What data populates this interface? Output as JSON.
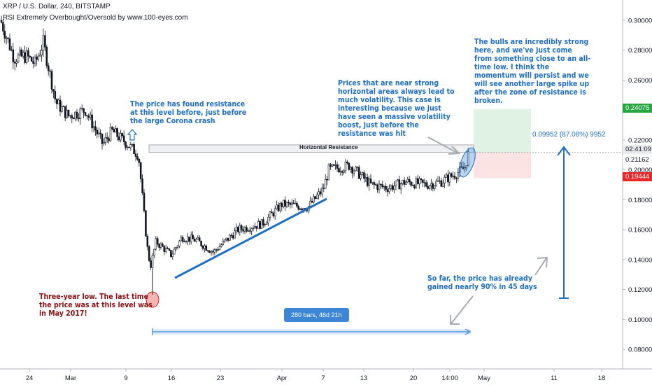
{
  "header": {
    "title": "XRP / U.S. Dollar, 240, BITSTAMP",
    "indicator": "RSI Extremely Overbought/Oversold by www.100-eyes.com"
  },
  "colors": {
    "up": "#ffffff",
    "down": "#131722",
    "accent_blue": "#1e6fc4",
    "dark_red": "#8b0f0f",
    "green_tag": "#26a641",
    "red_tag": "#e8272a",
    "grid": "#ffffff"
  },
  "axis": {
    "y_ticks": [
      "0.30000",
      "0.28000",
      "0.26000",
      "0.22000",
      "0.20000",
      "0.18000",
      "0.16000",
      "0.14000",
      "0.12000",
      "0.10000",
      "0.08000"
    ],
    "x_ticks": [
      "24",
      "Mar",
      "9",
      "16",
      "23",
      "Apr",
      "7",
      "13",
      "20",
      "14:00",
      "May",
      "11",
      "18"
    ],
    "price_tags": {
      "target": "0.24075",
      "countdown": "02:41:09",
      "last": "0.21162",
      "stop": "0.19444"
    }
  },
  "annotations": {
    "resistance": "The price has found resistance\nat this level before, just before\nthe large Corona crash",
    "volatility": "Prices that are near strong\nhorizontal areas always lead to\nmuch volatility. This case is\ninteresting because we just\nhave seen a massive volatility\nboost, just before the\nresistance was hit",
    "bulls": "The bulls are incredibly strong\nhere, and we've just come\nfrom something close to an all-\ntime low. I think the\nmomentum will persist and we\nwill see another large spike up\nafter the zone of resistance is\nbroken.",
    "low": "Three-year low. The last time\nthe price was at this level was\nin May 2017!",
    "gain": "So far, the price has already\ngained nearly 90% in 45 days",
    "zone_label": "Horizontal Resistance",
    "measure": "0.09952 (87.08%) 9952",
    "range": "280 bars, 46d 21h"
  },
  "chart_data": {
    "type": "candlestick",
    "symbol": "XRP / U.S. Dollar",
    "timeframe": "240",
    "exchange": "BITSTAMP",
    "ylim": [
      0.07,
      0.31
    ],
    "key_prices": {
      "resistance_zone": [
        0.2118,
        0.2167
      ],
      "three_year_low": 0.1165,
      "last": 0.21162,
      "target": 0.24075,
      "stop": 0.19444
    },
    "close_path": [
      [
        "Feb 21",
        0.3
      ],
      [
        "Feb 23",
        0.275
      ],
      [
        "Feb 25",
        0.276
      ],
      [
        "Feb 27",
        0.271
      ],
      [
        "Feb 29",
        0.285
      ],
      [
        "Mar 2",
        0.245
      ],
      [
        "Mar 4",
        0.236
      ],
      [
        "Mar 6",
        0.24
      ],
      [
        "Mar 8",
        0.217
      ],
      [
        "Mar 9",
        0.226
      ],
      [
        "Mar 10",
        0.219
      ],
      [
        "Mar 11",
        0.21
      ],
      [
        "Mar 12",
        0.15
      ],
      [
        "Mar 13",
        0.135
      ],
      [
        "Mar 14",
        0.152
      ],
      [
        "Mar 16",
        0.143
      ],
      [
        "Mar 17",
        0.155
      ],
      [
        "Mar 19",
        0.153
      ],
      [
        "Mar 22",
        0.145
      ],
      [
        "Mar 25",
        0.16
      ],
      [
        "Mar 28",
        0.164
      ],
      [
        "Mar 31",
        0.177
      ],
      [
        "Apr 3",
        0.175
      ],
      [
        "Apr 6",
        0.187
      ],
      [
        "Apr 7",
        0.2
      ],
      [
        "Apr 8",
        0.203
      ],
      [
        "Apr 11",
        0.19
      ],
      [
        "Apr 14",
        0.188
      ],
      [
        "Apr 17",
        0.192
      ],
      [
        "Apr 20",
        0.19
      ],
      [
        "Apr 23",
        0.192
      ],
      [
        "Apr 26",
        0.197
      ],
      [
        "Apr 28",
        0.201
      ],
      [
        "Apr 29",
        0.2116
      ]
    ]
  }
}
